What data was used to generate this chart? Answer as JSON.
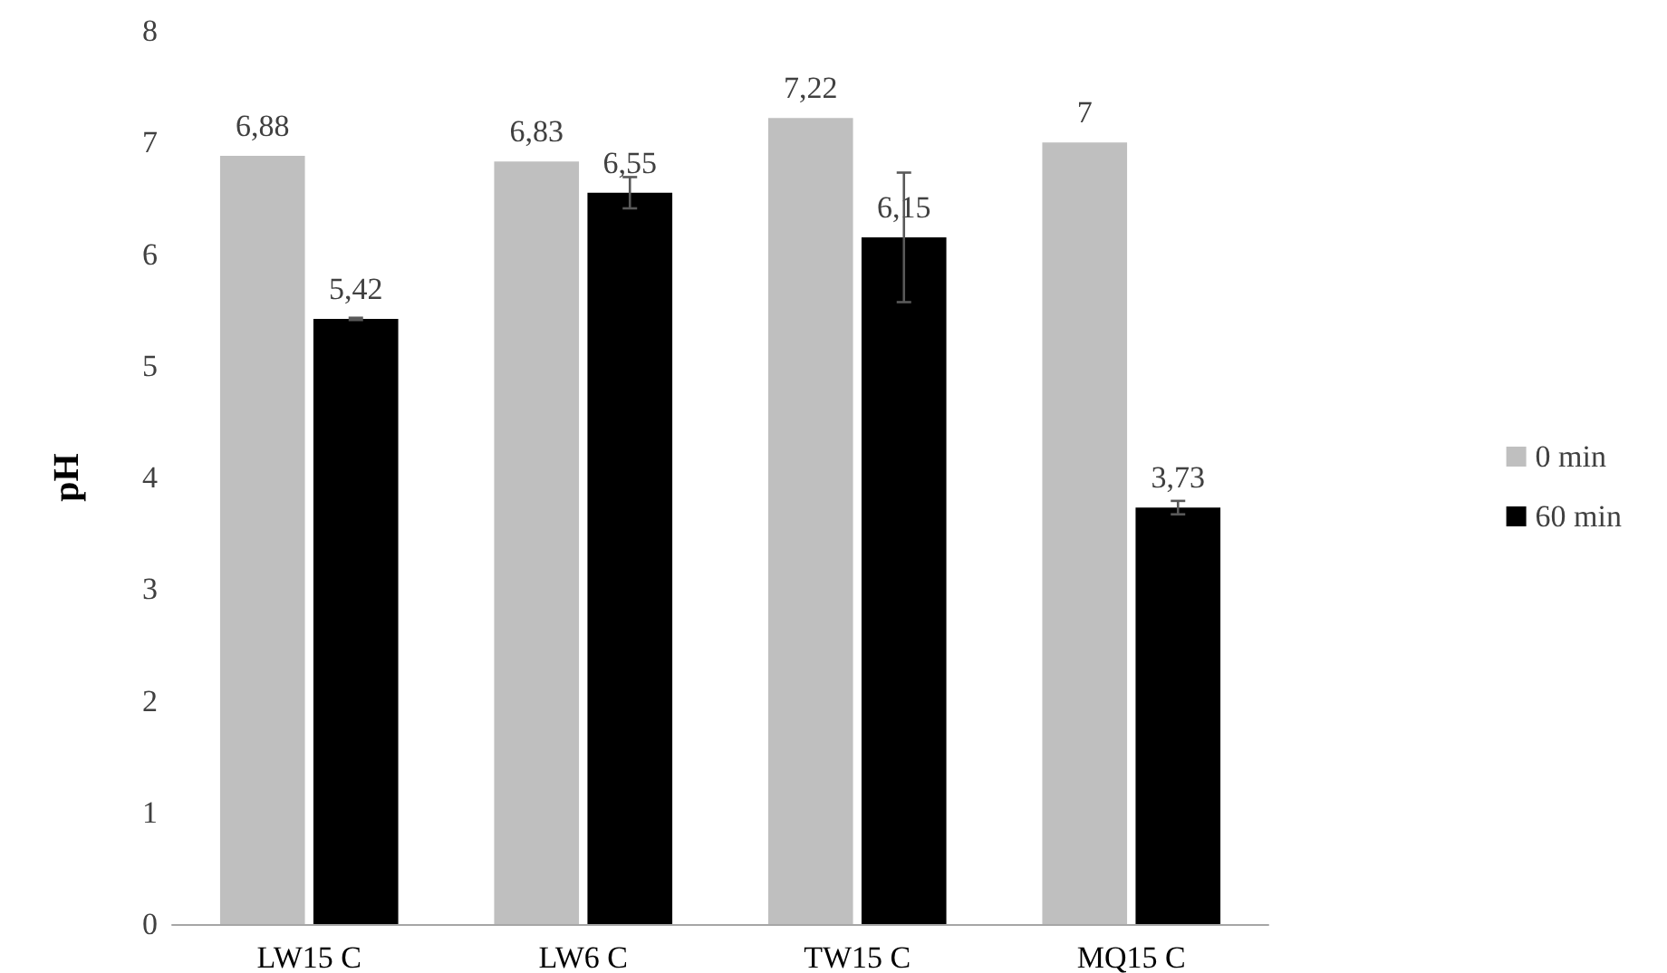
{
  "chart_data": {
    "type": "bar",
    "ylabel": "pH",
    "categories": [
      "LW15 C",
      "LW6 C",
      "TW15 C",
      "MQ15 C"
    ],
    "series": [
      {
        "name": "0 min",
        "color": "#bfbfbf",
        "values": [
          6.88,
          6.83,
          7.22,
          7
        ],
        "value_labels": [
          "6,88",
          "6,83",
          "7,22",
          "7"
        ]
      },
      {
        "name": "60 min",
        "color": "#000000",
        "values": [
          5.42,
          6.55,
          6.15,
          3.73
        ],
        "value_labels": [
          "5,42",
          "6,55",
          "6,15",
          "3,73"
        ],
        "errors": [
          0.01,
          0.14,
          0.58,
          0.06
        ]
      }
    ],
    "ylim": [
      0,
      8
    ],
    "yticks": [
      0,
      1,
      2,
      3,
      4,
      5,
      6,
      7,
      8
    ],
    "grid": false,
    "legend": "right"
  }
}
